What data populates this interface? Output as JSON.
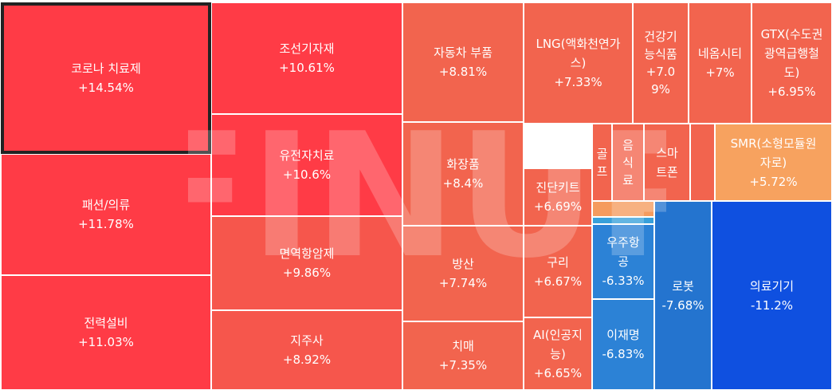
{
  "watermark": "FINUP",
  "colors": {
    "strong_up": "#ff3b46",
    "up": "#f6564c",
    "mild_up": "#f2644e",
    "light_up": "#f59b5e",
    "flat_light": "#f7a25f",
    "mild_down": "#2c82d6",
    "down": "#2474cf",
    "strong_down": "#0f50e0",
    "thin_blue": "#38a0da"
  },
  "chart_data": {
    "type": "treemap",
    "unit": "%",
    "items": [
      {
        "name": "코로나 치료제",
        "value": 14.54,
        "label": "+14.54%",
        "selected": true
      },
      {
        "name": "패션/의류",
        "value": 11.78,
        "label": "+11.78%"
      },
      {
        "name": "전력설비",
        "value": 11.03,
        "label": "+11.03%"
      },
      {
        "name": "조선기자재",
        "value": 10.61,
        "label": "+10.61%"
      },
      {
        "name": "유전자치료",
        "value": 10.6,
        "label": "+10.6%"
      },
      {
        "name": "면역항암제",
        "value": 9.86,
        "label": "+9.86%"
      },
      {
        "name": "지주사",
        "value": 8.92,
        "label": "+8.92%"
      },
      {
        "name": "자동차 부품",
        "value": 8.81,
        "label": "+8.81%"
      },
      {
        "name": "화장품",
        "value": 8.4,
        "label": "+8.4%"
      },
      {
        "name": "방산",
        "value": 7.74,
        "label": "+7.74%"
      },
      {
        "name": "치매",
        "value": 7.35,
        "label": "+7.35%"
      },
      {
        "name": "LNG(액화천연가스)",
        "value": 7.33,
        "label": "+7.33%",
        "name_wrapped": "LNG(액화천연가\n스)"
      },
      {
        "name": "건강기능식품",
        "value": 7.09,
        "label": "+7.09%",
        "name_wrapped": "건강기\n능식품",
        "label_wrapped": "+7.0\n9%"
      },
      {
        "name": "네옴시티",
        "value": 7,
        "label": "+7%"
      },
      {
        "name": "GTX(수도권광역급행철도)",
        "value": 6.95,
        "label": "+6.95%",
        "name_wrapped": "GTX(수도권\n광역급행철\n도)"
      },
      {
        "name": "진단키트",
        "value": 6.69,
        "label": "+6.69%"
      },
      {
        "name": "구리",
        "value": 6.67,
        "label": "+6.67%"
      },
      {
        "name": "AI(인공지능)",
        "value": 6.65,
        "label": "+6.65%",
        "name_wrapped": "AI(인공지\n능)"
      },
      {
        "name": "골프",
        "value": null,
        "label": "",
        "name_wrapped": "골\n프"
      },
      {
        "name": "음식료",
        "value": null,
        "label": "",
        "name_wrapped": "음\n식\n료"
      },
      {
        "name": "스마트폰",
        "value": null,
        "label": "",
        "name_wrapped": "스마\n트폰"
      },
      {
        "name": "",
        "value": null,
        "label": ""
      },
      {
        "name": "SMR(소형모듈원자로)",
        "value": 5.72,
        "label": "+5.72%",
        "name_wrapped": "SMR(소형모듈원\n자로)"
      },
      {
        "name": "",
        "value": null,
        "label": ""
      },
      {
        "name": "",
        "value": null,
        "label": ""
      },
      {
        "name": "우주항공",
        "value": -6.33,
        "label": "-6.33%",
        "name_wrapped": "우주항\n공"
      },
      {
        "name": "이재명",
        "value": -6.83,
        "label": "-6.83%"
      },
      {
        "name": "로봇",
        "value": -7.68,
        "label": "-7.68%"
      },
      {
        "name": "의료기기",
        "value": -11.2,
        "label": "-11.2%"
      }
    ]
  }
}
